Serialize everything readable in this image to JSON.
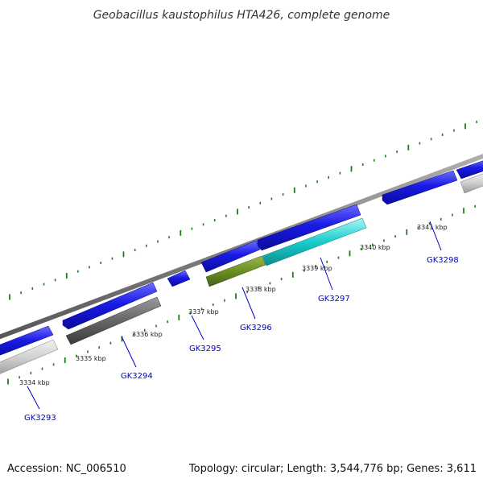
{
  "title": "Geobacillus kaustophilus HTA426, complete genome",
  "footer": {
    "accession": "Accession: NC_006510",
    "summary": "Topology: circular; Length: 3,544,776 bp; Genes: 3,611"
  },
  "colors": {
    "backbone": "#808080",
    "forward_gene": "#1a1ae6",
    "reverse_gray_light": "#cccccc",
    "reverse_gray_dark": "#666666",
    "reverse_olive": "#6b8e23",
    "reverse_cyan": "#19cccc",
    "tick_marks": "#1e7a1e",
    "label_link": "#0000cc"
  },
  "kbp_labels": [
    "3334 kbp",
    "3335 kbp",
    "3336 kbp",
    "3337 kbp",
    "3338 kbp",
    "3339 kbp",
    "3340 kbp",
    "3341 kbp"
  ],
  "gene_labels": [
    "GK3293",
    "GK3294",
    "GK3295",
    "GK3296",
    "GK3297",
    "GK3298"
  ]
}
